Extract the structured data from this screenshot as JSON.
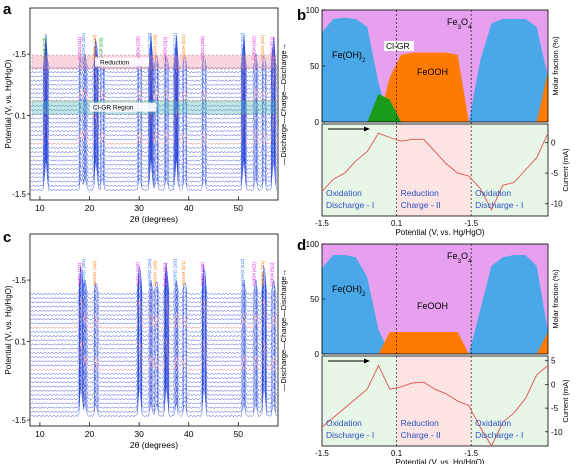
{
  "chart_data": [
    {
      "panel": "a",
      "type": "line",
      "description_type": "stacked XRD patterns",
      "xlabel": "2θ (degrees)",
      "ylabel": "Potential (V, vs. Hg/HgO)",
      "xlim": [
        8,
        58
      ],
      "xticks": [
        10,
        20,
        30,
        40,
        50
      ],
      "ytick_labels": [
        "-1.5",
        "0.1",
        "-1.5"
      ],
      "right_axis_text": "—Discharge—Charge—Discharge→",
      "region_labels": [
        "Reduction",
        "Cl-GR Region"
      ],
      "pattern_count": 30,
      "peaks": [
        {
          "x": 11.2,
          "label": "Cl-GR (003)",
          "color": "#1a9a1a"
        },
        {
          "x": 18.3,
          "label": "Fe3O4 (111)",
          "color": "#d400d4"
        },
        {
          "x": 19.1,
          "label": "Fe(OH)2 (001)",
          "color": "#2a6ef0"
        },
        {
          "x": 21.3,
          "label": "FeOOH (110)",
          "color": "#ff7a00"
        },
        {
          "x": 22.6,
          "label": "Cl-GR (006)",
          "color": "#1a9a1a"
        },
        {
          "x": 30.1,
          "label": "Fe3O4 (220)",
          "color": "#d400d4"
        },
        {
          "x": 32.4,
          "label": "Fe(OH)2 (100)",
          "color": "#2a6ef0"
        },
        {
          "x": 33.5,
          "label": "FeOOH (130)",
          "color": "#ff7a00"
        },
        {
          "x": 35.5,
          "label": "Fe3O4 (311)",
          "color": "#d400d4"
        },
        {
          "x": 37.5,
          "label": "Fe(OH)2 (101)",
          "color": "#2a6ef0"
        },
        {
          "x": 39.2,
          "label": "FeOOH (021)",
          "color": "#ff7a00"
        },
        {
          "x": 43.1,
          "label": "Fe3O4 (400)",
          "color": "#d400d4"
        },
        {
          "x": 51.1,
          "label": "Fe(OH)2 (012)",
          "color": "#2a6ef0"
        },
        {
          "x": 53.5,
          "label": "Fe3O4 (422)",
          "color": "#d400d4"
        },
        {
          "x": 55.2,
          "label": "FeOOH (221)",
          "color": "#ff7a00"
        },
        {
          "x": 57.1,
          "label": "Fe3O4 (511)",
          "color": "#d400d4"
        }
      ]
    },
    {
      "panel": "b",
      "type": "area",
      "xlabel": "Potential (V, vs. Hg/HgO)",
      "ylabel_top": "Molar fraction (%)",
      "ylabel_bottom": "Current (mA)",
      "xtick_labels": [
        "-1.5",
        "0.1",
        "-1.5"
      ],
      "top_yticks": [
        0,
        50,
        100
      ],
      "bottom_yticks": [
        0,
        -5,
        -10
      ],
      "series": [
        {
          "name": "Fe3O4",
          "color": "#e6a0ee"
        },
        {
          "name": "Fe(OH)2",
          "color": "#4aa8e8"
        },
        {
          "name": "FeOOH",
          "color": "#ff7a00"
        },
        {
          "name": "Cl-GR",
          "color": "#1a9a1a"
        }
      ],
      "progress": [
        0,
        0.05,
        0.1,
        0.15,
        0.2,
        0.25,
        0.3,
        0.35,
        0.4,
        0.45,
        0.5,
        0.55,
        0.6,
        0.65,
        0.7,
        0.75,
        0.8,
        0.85,
        0.9,
        0.95,
        1.0
      ],
      "fe_oh2_fraction": [
        80,
        92,
        93,
        92,
        85,
        35,
        0,
        0,
        0,
        0,
        0,
        0,
        0,
        0,
        55,
        88,
        92,
        92,
        92,
        85,
        40
      ],
      "feooh_fraction": [
        0,
        0,
        0,
        0,
        0,
        0,
        40,
        60,
        62,
        62,
        62,
        62,
        60,
        0,
        0,
        0,
        0,
        0,
        0,
        0,
        45
      ],
      "clgr_fraction": [
        0,
        0,
        0,
        0,
        0,
        25,
        20,
        0,
        0,
        0,
        0,
        0,
        0,
        0,
        0,
        0,
        0,
        0,
        0,
        0,
        0
      ],
      "current_progress": [
        0,
        0.05,
        0.1,
        0.15,
        0.2,
        0.25,
        0.3,
        0.35,
        0.4,
        0.45,
        0.5,
        0.55,
        0.6,
        0.65,
        0.7,
        0.75,
        0.8,
        0.85,
        0.9,
        0.95,
        1.0
      ],
      "current_mA": [
        -8,
        -6,
        -5,
        -3,
        -1.5,
        1.5,
        0.8,
        0.2,
        0.5,
        0.5,
        -1.5,
        -3.5,
        -5,
        -5.5,
        -7.5,
        -11,
        -7,
        -6.5,
        -4.5,
        -2.5,
        1.5
      ],
      "current_range": [
        -12,
        3
      ],
      "region_labels": [
        {
          "line1": "Oxidation",
          "line2": "Discharge - I"
        },
        {
          "line1": "Reduction",
          "line2": "Charge - II"
        },
        {
          "line1": "Oxidation",
          "line2": "Discharge - I"
        }
      ]
    },
    {
      "panel": "c",
      "type": "line",
      "description_type": "stacked XRD patterns",
      "xlabel": "2θ (degrees)",
      "ylabel": "Potential (V, vs. Hg/HgO)",
      "xlim": [
        8,
        58
      ],
      "xticks": [
        10,
        20,
        30,
        40,
        50
      ],
      "ytick_labels": [
        "-1.5",
        "0.1",
        "-1.5"
      ],
      "right_axis_text": "—Discharge—Charge—Discharge→",
      "pattern_count": 30,
      "peaks": [
        {
          "x": 18.3,
          "label": "Fe3O4 (111)",
          "color": "#d400d4"
        },
        {
          "x": 19.1,
          "label": "Fe(OH)2 (001)",
          "color": "#2a6ef0"
        },
        {
          "x": 21.3,
          "label": "FeOOH (110)",
          "color": "#ff7a00"
        },
        {
          "x": 30.1,
          "label": "Fe3O4 (220)",
          "color": "#d400d4"
        },
        {
          "x": 32.4,
          "label": "Fe(OH)2 (100)",
          "color": "#2a6ef0"
        },
        {
          "x": 33.5,
          "label": "FeOOH (130)",
          "color": "#ff7a00"
        },
        {
          "x": 35.5,
          "label": "Fe3O4 (311)",
          "color": "#d400d4"
        },
        {
          "x": 37.5,
          "label": "Fe(OH)2 (101)",
          "color": "#2a6ef0"
        },
        {
          "x": 39.2,
          "label": "FeOOH (021)",
          "color": "#ff7a00"
        },
        {
          "x": 43.1,
          "label": "Fe3O4 (400)",
          "color": "#d400d4"
        },
        {
          "x": 51.1,
          "label": "Fe(OH)2 (012)",
          "color": "#2a6ef0"
        },
        {
          "x": 53.5,
          "label": "Fe3O4 (422)",
          "color": "#d400d4"
        },
        {
          "x": 55.2,
          "label": "FeOOH (221)",
          "color": "#ff7a00"
        },
        {
          "x": 57.1,
          "label": "Fe3O4 (511)",
          "color": "#d400d4"
        }
      ]
    },
    {
      "panel": "d",
      "type": "area",
      "xlabel": "Potential (V, vs. Hg/HgO)",
      "ylabel_top": "Molar fraction (%)",
      "ylabel_bottom": "Current (mA)",
      "xtick_labels": [
        "-1.5",
        "0.1",
        "-1.5"
      ],
      "top_yticks": [
        0,
        50,
        100
      ],
      "bottom_yticks": [
        5,
        0,
        -5,
        -10
      ],
      "series": [
        {
          "name": "Fe3O4",
          "color": "#e6a0ee"
        },
        {
          "name": "Fe(OH)2",
          "color": "#4aa8e8"
        },
        {
          "name": "FeOOH",
          "color": "#ff7a00"
        }
      ],
      "progress": [
        0,
        0.05,
        0.1,
        0.15,
        0.2,
        0.25,
        0.3,
        0.35,
        0.4,
        0.45,
        0.5,
        0.55,
        0.6,
        0.65,
        0.7,
        0.75,
        0.8,
        0.85,
        0.9,
        0.95,
        1.0
      ],
      "fe_oh2_fraction": [
        78,
        90,
        90,
        88,
        70,
        22,
        0,
        0,
        0,
        0,
        0,
        0,
        0,
        0,
        40,
        80,
        88,
        90,
        90,
        80,
        20
      ],
      "feooh_fraction": [
        0,
        0,
        0,
        0,
        0,
        0,
        20,
        20,
        20,
        20,
        20,
        20,
        20,
        0,
        0,
        0,
        0,
        0,
        0,
        0,
        20
      ],
      "current_progress": [
        0,
        0.05,
        0.1,
        0.15,
        0.2,
        0.25,
        0.3,
        0.35,
        0.4,
        0.45,
        0.5,
        0.55,
        0.6,
        0.65,
        0.7,
        0.75,
        0.8,
        0.85,
        0.9,
        0.95,
        1.0
      ],
      "current_mA": [
        -9,
        -7,
        -5,
        -3,
        -1,
        4,
        -1,
        -0.5,
        0.3,
        0.5,
        -1,
        -2,
        -3.5,
        -4.5,
        -9,
        -13,
        -8,
        -6,
        -3,
        2,
        4
      ],
      "current_range": [
        -13,
        6
      ],
      "region_labels": [
        {
          "line1": "Oxidation",
          "line2": "Discharge - I"
        },
        {
          "line1": "Reduction",
          "line2": "Charge - II"
        },
        {
          "line1": "Oxidation",
          "line2": "Discharge - I"
        }
      ]
    }
  ],
  "panel_letters": [
    "a",
    "b",
    "c",
    "d"
  ]
}
